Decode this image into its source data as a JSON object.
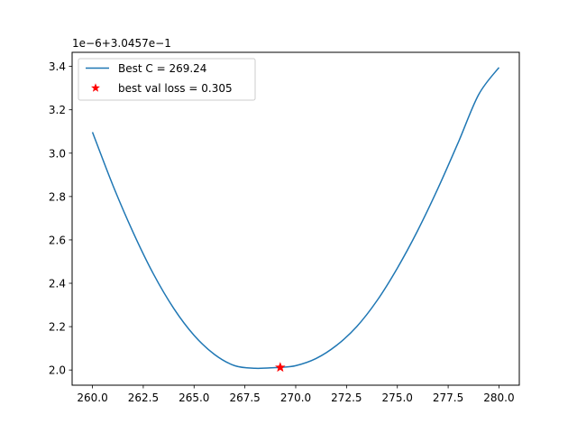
{
  "chart_data": {
    "type": "line",
    "title": "",
    "xlabel": "",
    "ylabel": "",
    "y_offset_label": "1e−6+3.0457e−1",
    "xlim": [
      259.0,
      281.0
    ],
    "ylim": [
      1.93,
      3.465
    ],
    "x_ticks": [
      260.0,
      262.5,
      265.0,
      267.5,
      270.0,
      272.5,
      275.0,
      277.5,
      280.0
    ],
    "x_tick_labels": [
      "260.0",
      "262.5",
      "265.0",
      "267.5",
      "270.0",
      "272.5",
      "275.0",
      "277.5",
      "280.0"
    ],
    "y_ticks": [
      2.0,
      2.2,
      2.4,
      2.6,
      2.8,
      3.0,
      3.2,
      3.4
    ],
    "y_tick_labels": [
      "2.0",
      "2.2",
      "2.4",
      "2.6",
      "2.8",
      "3.0",
      "3.2",
      "3.4"
    ],
    "grid": false,
    "legend_position": "upper-left",
    "series": [
      {
        "name": "Best C = 269.24",
        "kind": "line",
        "color": "#1f77b4",
        "x": [
          260.0,
          261.0,
          262.0,
          263.0,
          264.0,
          265.0,
          266.0,
          267.0,
          268.0,
          269.0,
          269.24,
          270.0,
          271.0,
          272.0,
          273.0,
          274.0,
          275.0,
          276.0,
          277.0,
          278.0,
          279.0,
          280.0
        ],
        "y": [
          3.097,
          2.853,
          2.635,
          2.443,
          2.284,
          2.16,
          2.072,
          2.02,
          2.008,
          2.011,
          2.012,
          2.02,
          2.053,
          2.113,
          2.2,
          2.32,
          2.47,
          2.643,
          2.838,
          3.05,
          3.27,
          3.395
        ]
      },
      {
        "name": "best val loss = 0.305",
        "kind": "scatter",
        "marker": "star",
        "color": "#ff0000",
        "x": [
          269.24
        ],
        "y": [
          2.012
        ]
      }
    ]
  }
}
